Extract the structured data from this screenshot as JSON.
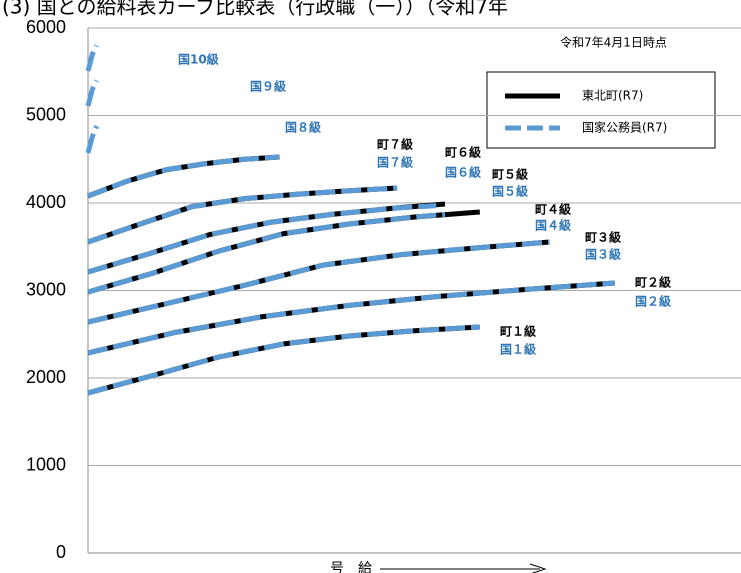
{
  "chart_data": {
    "type": "line",
    "title": "(3) 国との給料表カーブ比較表（行政職（一））（令和7年",
    "annotation": "令和7年4月1日時点",
    "xlabel": "号　給",
    "xlim": [
      0,
      150
    ],
    "ylim": [
      0,
      6000
    ],
    "yticks": [
      0,
      1000,
      2000,
      3000,
      4000,
      5000,
      6000
    ],
    "grid": true,
    "legend": "upper right",
    "series": [
      {
        "name": "東北町(R7)",
        "color": "#000000",
        "dashed": false,
        "lines": [
          {
            "label": "町１級",
            "x": [
              0,
              15,
              30,
              45,
              60,
              75,
              90
            ],
            "values": [
              1829,
              2030,
              2240,
              2390,
              2480,
              2540,
              2583
            ]
          },
          {
            "label": "町２級",
            "x": [
              0,
              20,
              40,
              60,
              80,
              100,
              121
            ],
            "values": [
              2286,
              2520,
              2700,
              2830,
              2930,
              3010,
              3086
            ]
          },
          {
            "label": "町３級",
            "x": [
              0,
              18,
              36,
              54,
              72,
              90,
              106
            ],
            "values": [
              2640,
              2850,
              3060,
              3290,
              3410,
              3490,
              3554
            ]
          },
          {
            "label": "町４級",
            "x": [
              0,
              15,
              30,
              45,
              60,
              75,
              90
            ],
            "values": [
              2983,
              3200,
              3450,
              3650,
              3760,
              3840,
              3897
            ]
          },
          {
            "label": "町５級",
            "x": [
              0,
              14,
              28,
              42,
              56,
              70,
              82
            ],
            "values": [
              3211,
              3420,
              3640,
              3780,
              3870,
              3940,
              3989
            ]
          },
          {
            "label": "町６級",
            "x": [
              0,
              12,
              24,
              36,
              48,
              60,
              71
            ],
            "values": [
              3554,
              3760,
              3960,
              4050,
              4100,
              4140,
              4171
            ]
          },
          {
            "label": "町７級",
            "x": [
              0,
              9,
              18,
              27,
              36,
              44
            ],
            "values": [
              4080,
              4250,
              4380,
              4450,
              4500,
              4526
            ]
          }
        ]
      },
      {
        "name": "国家公務員(R7)",
        "color": "#5b9bd5",
        "dashed": true,
        "lines": [
          {
            "label": "国１級",
            "x": [
              0,
              15,
              30,
              45,
              60,
              75,
              90
            ],
            "values": [
              1829,
              2030,
              2240,
              2390,
              2480,
              2540,
              2583
            ]
          },
          {
            "label": "国２級",
            "x": [
              0,
              20,
              40,
              60,
              80,
              100,
              121
            ],
            "values": [
              2286,
              2520,
              2700,
              2830,
              2930,
              3010,
              3086
            ]
          },
          {
            "label": "国３級",
            "x": [
              0,
              18,
              36,
              54,
              72,
              90,
              106
            ],
            "values": [
              2640,
              2850,
              3060,
              3290,
              3410,
              3490,
              3554
            ]
          },
          {
            "label": "国４級",
            "x": [
              0,
              15,
              30,
              45,
              60,
              75,
              82
            ],
            "values": [
              2983,
              3200,
              3450,
              3650,
              3760,
              3840,
              3870
            ]
          },
          {
            "label": "国５級",
            "x": [
              0,
              14,
              28,
              42,
              56,
              70,
              80
            ],
            "values": [
              3211,
              3420,
              3640,
              3780,
              3870,
              3940,
              3970
            ]
          },
          {
            "label": "国６級",
            "x": [
              0,
              12,
              24,
              36,
              48,
              60,
              71
            ],
            "values": [
              3554,
              3760,
              3960,
              4050,
              4100,
              4140,
              4171
            ]
          },
          {
            "label": "国７級",
            "x": [
              0,
              9,
              18,
              27,
              36,
              44
            ],
            "values": [
              4080,
              4250,
              4380,
              4450,
              4500,
              4526
            ]
          },
          {
            "label": "国８級",
            "x": [
              0,
              1,
              2
            ],
            "values": [
              4571,
              4760,
              4880
            ]
          },
          {
            "label": "国９級",
            "x": [
              0,
              1,
              2
            ],
            "values": [
              5109,
              5300,
              5400
            ]
          },
          {
            "label": "国10級",
            "x": [
              0,
              1,
              2
            ],
            "values": [
              5509,
              5700,
              5800
            ]
          }
        ]
      }
    ]
  }
}
